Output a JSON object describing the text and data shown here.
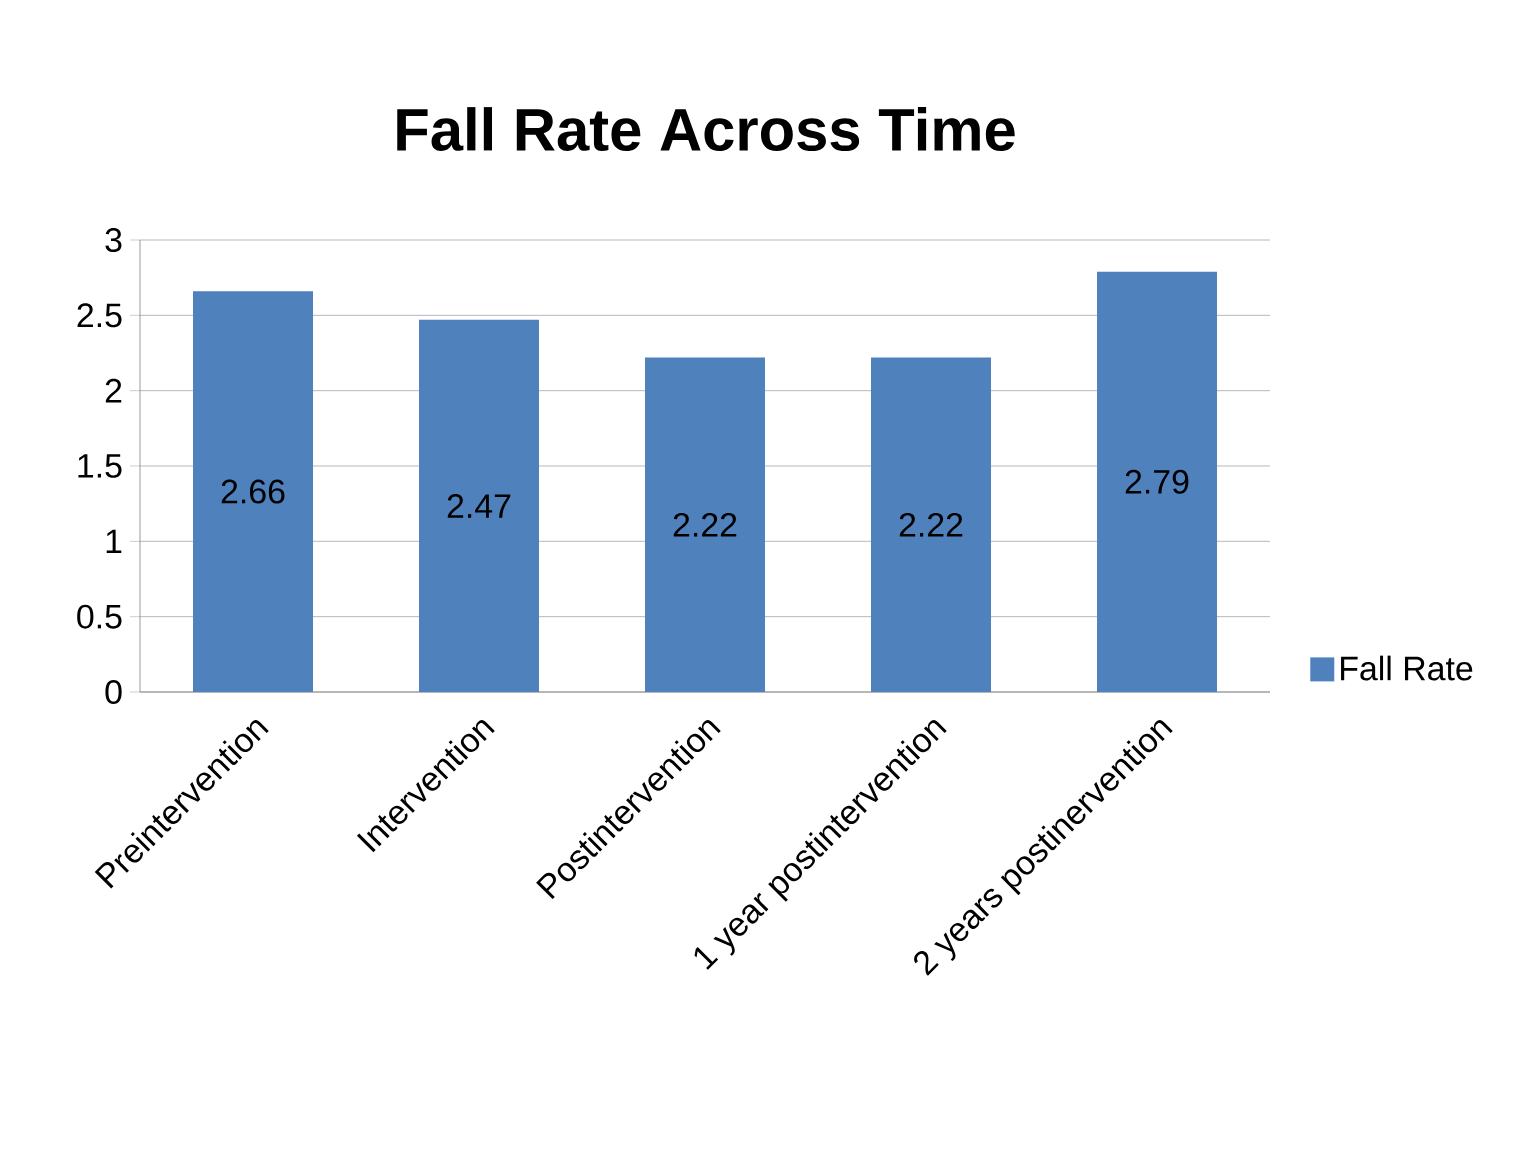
{
  "chart_data": {
    "type": "bar",
    "title": "Fall Rate Across Time",
    "categories": [
      "Preintervention",
      "Intervention",
      "Postintervention",
      "1 year postintervention",
      "2 years postinervention"
    ],
    "series": [
      {
        "name": "Fall Rate",
        "color": "#4f81bd",
        "values": [
          2.66,
          2.47,
          2.22,
          2.22,
          2.79
        ]
      }
    ],
    "ylim": [
      0,
      3
    ],
    "yticks": [
      0,
      0.5,
      1,
      1.5,
      2,
      2.5,
      3
    ],
    "grid": "y",
    "legend": "right",
    "data_labels": true
  }
}
